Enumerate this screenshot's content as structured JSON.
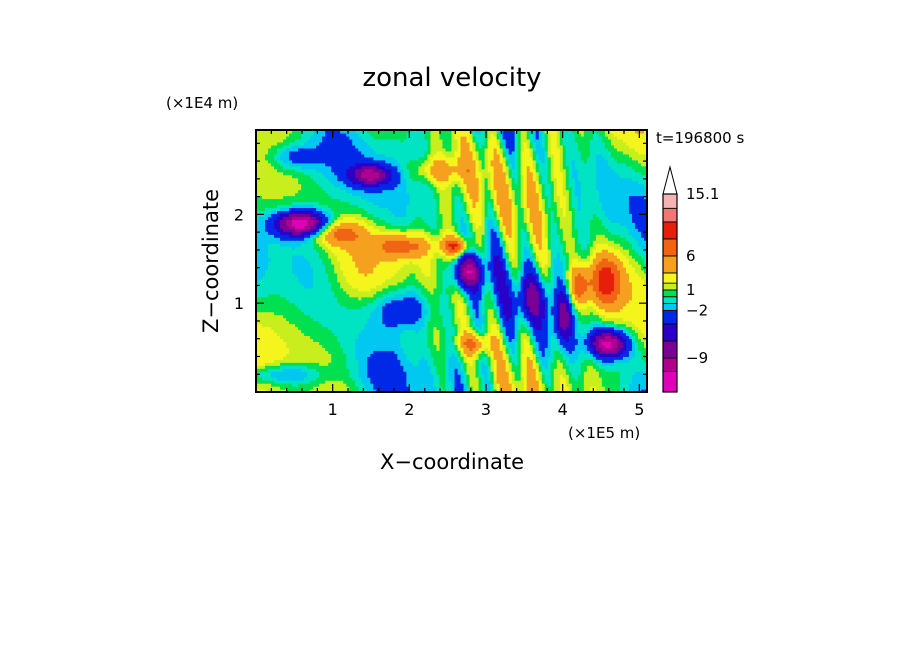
{
  "chart_data": {
    "type": "heatmap",
    "title": "zonal velocity",
    "xlabel": "X−coordinate",
    "ylabel": "Z−coordinate",
    "x_unit": "(×1E5 m)",
    "y_unit": "(×1E4 m)",
    "time_label": "t=196800 s",
    "xlim": [
      0.0,
      5.1
    ],
    "ylim": [
      0.0,
      2.95
    ],
    "x_ticks": [
      {
        "value": 1,
        "label": "1"
      },
      {
        "value": 2,
        "label": "2"
      },
      {
        "value": 3,
        "label": "3"
      },
      {
        "value": 4,
        "label": "4"
      },
      {
        "value": 5,
        "label": "5"
      }
    ],
    "y_ticks": [
      {
        "value": 1,
        "label": "1"
      },
      {
        "value": 2,
        "label": "2"
      }
    ],
    "colorbar": {
      "levels": [
        -14,
        -11,
        -9,
        -6.5,
        -4,
        -2,
        -1,
        0,
        1,
        2,
        3.5,
        6,
        8.5,
        11,
        13,
        15.1
      ],
      "colors": [
        "#e000b8",
        "#b0008f",
        "#7a0095",
        "#2a00c8",
        "#0028e6",
        "#00c8f0",
        "#00e4c4",
        "#00e050",
        "#c8ee1e",
        "#f5f51e",
        "#f5a01e",
        "#f06414",
        "#e61e0a",
        "#f07872",
        "#f5b4b4",
        "#ffffff"
      ],
      "labels": [
        {
          "value": 15.1,
          "text": "15.1"
        },
        {
          "value": 6,
          "text": "6"
        },
        {
          "value": 1,
          "text": "1"
        },
        {
          "value": -2,
          "text": "−2"
        },
        {
          "value": -9,
          "text": "−9"
        }
      ]
    },
    "grid": false,
    "legend": "colorbar-right"
  }
}
